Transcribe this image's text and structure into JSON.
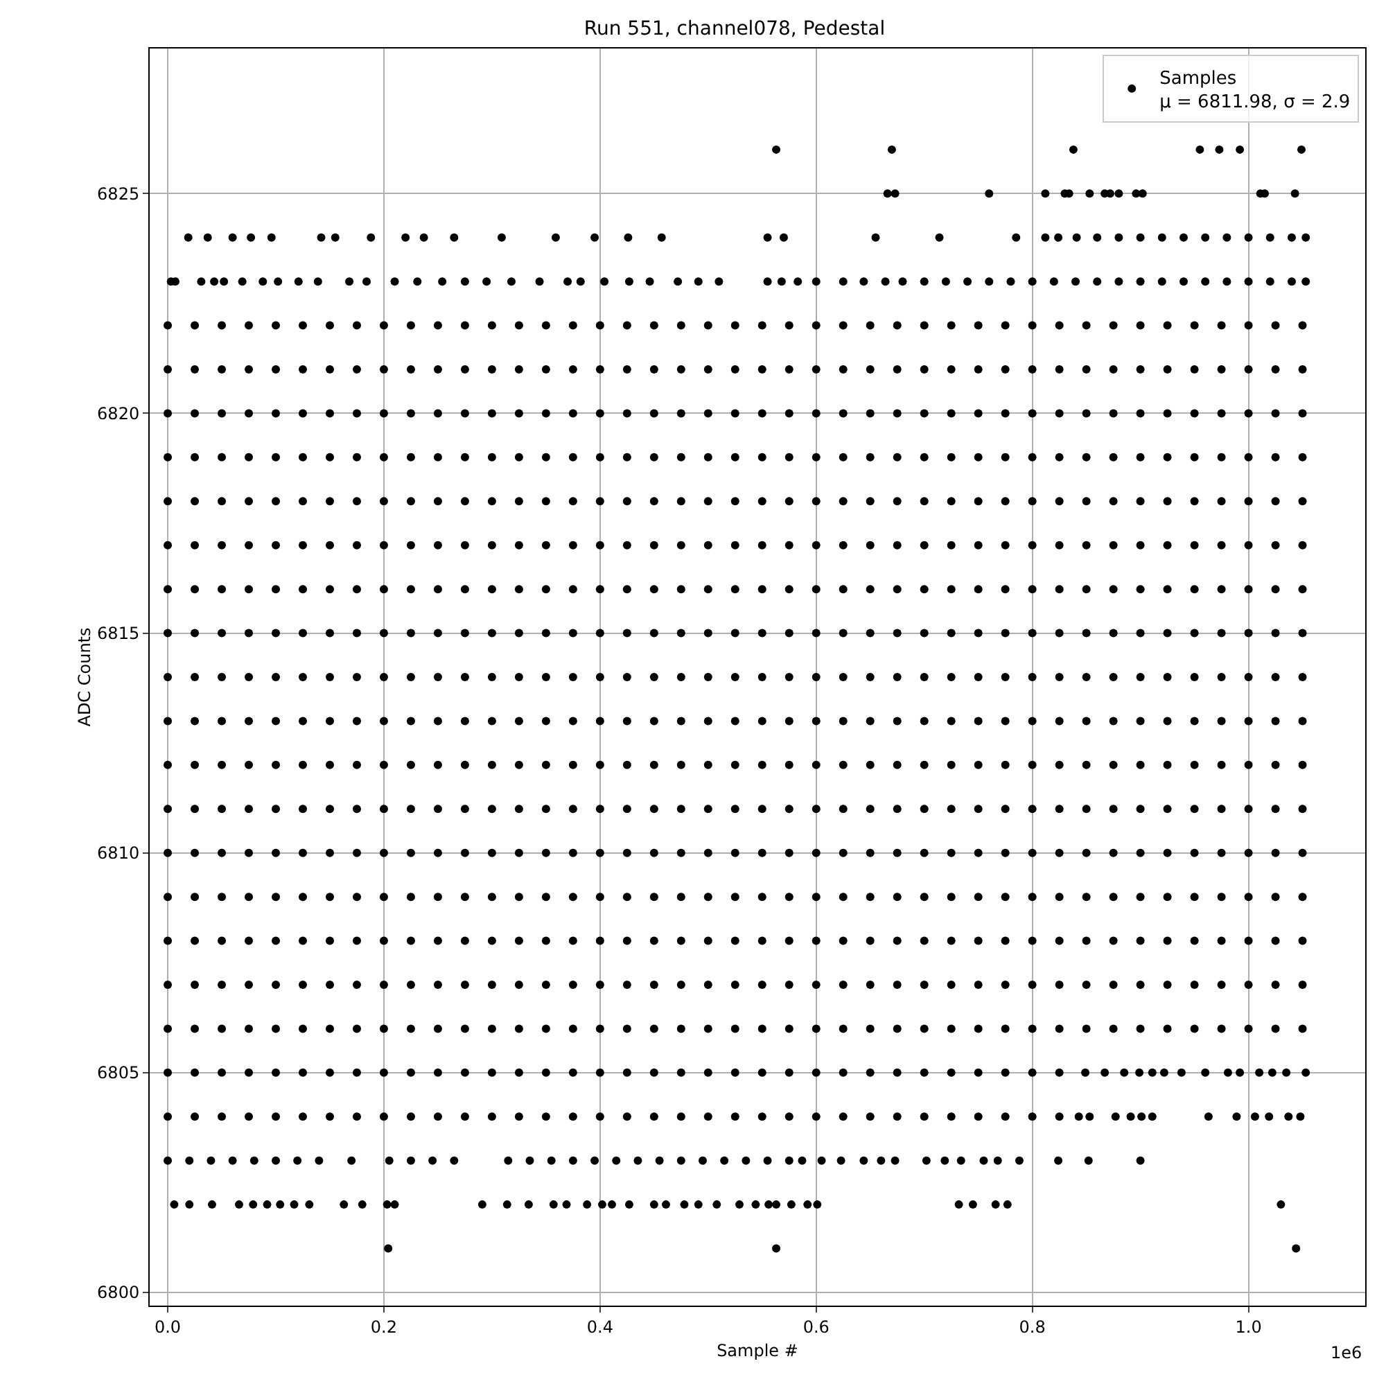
{
  "chart_data": {
    "type": "scatter",
    "title": "Run 551, channel078, Pedestal",
    "xlabel": "Sample #",
    "ylabel": "ADC Counts",
    "annotations": [
      "1e6"
    ],
    "xlim": [
      -0.0167,
      1.108
    ],
    "xticks": [
      {
        "value": 0,
        "label": "0.0"
      },
      0.2,
      0.4,
      0.6,
      0.8,
      {
        "value": 1,
        "label": "1.0"
      }
    ],
    "ylim": [
      6799.7,
      6828.3
    ],
    "yticks": [
      6800,
      6805,
      6810,
      6815,
      6820,
      6825
    ],
    "grid": true,
    "legend": "top right",
    "marker": "circle",
    "x": [
      0,
      0.025,
      0.05,
      0.075,
      0.1,
      0.125,
      0.15,
      0.175,
      0.2,
      0.225,
      0.25,
      0.275,
      0.3,
      0.325,
      0.35,
      0.375,
      0.4,
      0.425,
      0.45,
      0.475,
      0.5,
      0.525,
      0.55,
      0.575,
      0.6,
      0.625,
      0.65,
      0.675,
      0.7,
      0.725,
      0.75,
      0.775,
      0.8,
      0.825,
      0.85,
      0.875,
      0.9,
      0.925,
      0.95,
      0.975,
      1,
      1.025,
      1.05
    ],
    "series": [
      {
        "name": "Samples\nμ = 6811.98, σ = 2.9",
        "color": "#000000",
        "values": [
          6822,
          6822,
          6822,
          6822,
          6822,
          6822,
          6822,
          6822,
          6822,
          6822,
          6822,
          6822,
          6822,
          6822,
          6822,
          6822,
          6822,
          6822,
          6822,
          6822,
          6822,
          6822,
          6822,
          6822,
          6822,
          6822,
          6822,
          6822,
          6822,
          6822,
          6822,
          6822,
          6822,
          6822,
          6822,
          6822,
          6822,
          6822,
          6822,
          6822,
          6822,
          6822,
          6822
        ]
      },
      {
        "color": "#000000",
        "values": [
          6821,
          6821,
          6821,
          6821,
          6821,
          6821,
          6821,
          6821,
          6821,
          6821,
          6821,
          6821,
          6821,
          6821,
          6821,
          6821,
          6821,
          6821,
          6821,
          6821,
          6821,
          6821,
          6821,
          6821,
          6821,
          6821,
          6821,
          6821,
          6821,
          6821,
          6821,
          6821,
          6821,
          6821,
          6821,
          6821,
          6821,
          6821,
          6821,
          6821,
          6821,
          6821,
          6821
        ]
      },
      {
        "color": "#000000",
        "values": [
          6820,
          6820,
          6820,
          6820,
          6820,
          6820,
          6820,
          6820,
          6820,
          6820,
          6820,
          6820,
          6820,
          6820,
          6820,
          6820,
          6820,
          6820,
          6820,
          6820,
          6820,
          6820,
          6820,
          6820,
          6820,
          6820,
          6820,
          6820,
          6820,
          6820,
          6820,
          6820,
          6820,
          6820,
          6820,
          6820,
          6820,
          6820,
          6820,
          6820,
          6820,
          6820,
          6820
        ]
      },
      {
        "color": "#000000",
        "values": [
          6819,
          6819,
          6819,
          6819,
          6819,
          6819,
          6819,
          6819,
          6819,
          6819,
          6819,
          6819,
          6819,
          6819,
          6819,
          6819,
          6819,
          6819,
          6819,
          6819,
          6819,
          6819,
          6819,
          6819,
          6819,
          6819,
          6819,
          6819,
          6819,
          6819,
          6819,
          6819,
          6819,
          6819,
          6819,
          6819,
          6819,
          6819,
          6819,
          6819,
          6819,
          6819,
          6819
        ]
      },
      {
        "color": "#000000",
        "values": [
          6818,
          6818,
          6818,
          6818,
          6818,
          6818,
          6818,
          6818,
          6818,
          6818,
          6818,
          6818,
          6818,
          6818,
          6818,
          6818,
          6818,
          6818,
          6818,
          6818,
          6818,
          6818,
          6818,
          6818,
          6818,
          6818,
          6818,
          6818,
          6818,
          6818,
          6818,
          6818,
          6818,
          6818,
          6818,
          6818,
          6818,
          6818,
          6818,
          6818,
          6818,
          6818,
          6818
        ]
      },
      {
        "color": "#000000",
        "values": [
          6817,
          6817,
          6817,
          6817,
          6817,
          6817,
          6817,
          6817,
          6817,
          6817,
          6817,
          6817,
          6817,
          6817,
          6817,
          6817,
          6817,
          6817,
          6817,
          6817,
          6817,
          6817,
          6817,
          6817,
          6817,
          6817,
          6817,
          6817,
          6817,
          6817,
          6817,
          6817,
          6817,
          6817,
          6817,
          6817,
          6817,
          6817,
          6817,
          6817,
          6817,
          6817,
          6817
        ]
      },
      {
        "color": "#000000",
        "values": [
          6816,
          6816,
          6816,
          6816,
          6816,
          6816,
          6816,
          6816,
          6816,
          6816,
          6816,
          6816,
          6816,
          6816,
          6816,
          6816,
          6816,
          6816,
          6816,
          6816,
          6816,
          6816,
          6816,
          6816,
          6816,
          6816,
          6816,
          6816,
          6816,
          6816,
          6816,
          6816,
          6816,
          6816,
          6816,
          6816,
          6816,
          6816,
          6816,
          6816,
          6816,
          6816,
          6816
        ]
      },
      {
        "color": "#000000",
        "values": [
          6815,
          6815,
          6815,
          6815,
          6815,
          6815,
          6815,
          6815,
          6815,
          6815,
          6815,
          6815,
          6815,
          6815,
          6815,
          6815,
          6815,
          6815,
          6815,
          6815,
          6815,
          6815,
          6815,
          6815,
          6815,
          6815,
          6815,
          6815,
          6815,
          6815,
          6815,
          6815,
          6815,
          6815,
          6815,
          6815,
          6815,
          6815,
          6815,
          6815,
          6815,
          6815,
          6815
        ]
      },
      {
        "color": "#000000",
        "values": [
          6814,
          6814,
          6814,
          6814,
          6814,
          6814,
          6814,
          6814,
          6814,
          6814,
          6814,
          6814,
          6814,
          6814,
          6814,
          6814,
          6814,
          6814,
          6814,
          6814,
          6814,
          6814,
          6814,
          6814,
          6814,
          6814,
          6814,
          6814,
          6814,
          6814,
          6814,
          6814,
          6814,
          6814,
          6814,
          6814,
          6814,
          6814,
          6814,
          6814,
          6814,
          6814,
          6814
        ]
      },
      {
        "color": "#000000",
        "values": [
          6813,
          6813,
          6813,
          6813,
          6813,
          6813,
          6813,
          6813,
          6813,
          6813,
          6813,
          6813,
          6813,
          6813,
          6813,
          6813,
          6813,
          6813,
          6813,
          6813,
          6813,
          6813,
          6813,
          6813,
          6813,
          6813,
          6813,
          6813,
          6813,
          6813,
          6813,
          6813,
          6813,
          6813,
          6813,
          6813,
          6813,
          6813,
          6813,
          6813,
          6813,
          6813,
          6813
        ]
      },
      {
        "color": "#000000",
        "values": [
          6812,
          6812,
          6812,
          6812,
          6812,
          6812,
          6812,
          6812,
          6812,
          6812,
          6812,
          6812,
          6812,
          6812,
          6812,
          6812,
          6812,
          6812,
          6812,
          6812,
          6812,
          6812,
          6812,
          6812,
          6812,
          6812,
          6812,
          6812,
          6812,
          6812,
          6812,
          6812,
          6812,
          6812,
          6812,
          6812,
          6812,
          6812,
          6812,
          6812,
          6812,
          6812,
          6812
        ]
      },
      {
        "color": "#000000",
        "values": [
          6811,
          6811,
          6811,
          6811,
          6811,
          6811,
          6811,
          6811,
          6811,
          6811,
          6811,
          6811,
          6811,
          6811,
          6811,
          6811,
          6811,
          6811,
          6811,
          6811,
          6811,
          6811,
          6811,
          6811,
          6811,
          6811,
          6811,
          6811,
          6811,
          6811,
          6811,
          6811,
          6811,
          6811,
          6811,
          6811,
          6811,
          6811,
          6811,
          6811,
          6811,
          6811,
          6811
        ]
      },
      {
        "color": "#000000",
        "values": [
          6810,
          6810,
          6810,
          6810,
          6810,
          6810,
          6810,
          6810,
          6810,
          6810,
          6810,
          6810,
          6810,
          6810,
          6810,
          6810,
          6810,
          6810,
          6810,
          6810,
          6810,
          6810,
          6810,
          6810,
          6810,
          6810,
          6810,
          6810,
          6810,
          6810,
          6810,
          6810,
          6810,
          6810,
          6810,
          6810,
          6810,
          6810,
          6810,
          6810,
          6810,
          6810,
          6810
        ]
      },
      {
        "color": "#000000",
        "values": [
          6809,
          6809,
          6809,
          6809,
          6809,
          6809,
          6809,
          6809,
          6809,
          6809,
          6809,
          6809,
          6809,
          6809,
          6809,
          6809,
          6809,
          6809,
          6809,
          6809,
          6809,
          6809,
          6809,
          6809,
          6809,
          6809,
          6809,
          6809,
          6809,
          6809,
          6809,
          6809,
          6809,
          6809,
          6809,
          6809,
          6809,
          6809,
          6809,
          6809,
          6809,
          6809,
          6809
        ]
      },
      {
        "color": "#000000",
        "values": [
          6808,
          6808,
          6808,
          6808,
          6808,
          6808,
          6808,
          6808,
          6808,
          6808,
          6808,
          6808,
          6808,
          6808,
          6808,
          6808,
          6808,
          6808,
          6808,
          6808,
          6808,
          6808,
          6808,
          6808,
          6808,
          6808,
          6808,
          6808,
          6808,
          6808,
          6808,
          6808,
          6808,
          6808,
          6808,
          6808,
          6808,
          6808,
          6808,
          6808,
          6808,
          6808,
          6808
        ]
      },
      {
        "color": "#000000",
        "values": [
          6807,
          6807,
          6807,
          6807,
          6807,
          6807,
          6807,
          6807,
          6807,
          6807,
          6807,
          6807,
          6807,
          6807,
          6807,
          6807,
          6807,
          6807,
          6807,
          6807,
          6807,
          6807,
          6807,
          6807,
          6807,
          6807,
          6807,
          6807,
          6807,
          6807,
          6807,
          6807,
          6807,
          6807,
          6807,
          6807,
          6807,
          6807,
          6807,
          6807,
          6807,
          6807,
          6807
        ]
      },
      {
        "color": "#000000",
        "values": [
          6806,
          6806,
          6806,
          6806,
          6806,
          6806,
          6806,
          6806,
          6806,
          6806,
          6806,
          6806,
          6806,
          6806,
          6806,
          6806,
          6806,
          6806,
          6806,
          6806,
          6806,
          6806,
          6806,
          6806,
          6806,
          6806,
          6806,
          6806,
          6806,
          6806,
          6806,
          6806,
          6806,
          6806,
          6806,
          6806,
          6806,
          6806,
          6806,
          6806,
          6806,
          6806,
          6806
        ]
      },
      {
        "color": "#000000",
        "x": [
          0,
          0.025,
          0.05,
          0.075,
          0.1,
          0.125,
          0.15,
          0.175,
          0.2,
          0.225,
          0.25,
          0.275,
          0.3,
          0.325,
          0.35,
          0.375,
          0.4,
          0.425,
          0.45,
          0.475,
          0.5,
          0.525,
          0.55,
          0.575,
          0.6,
          0.625,
          0.65,
          0.675,
          0.7,
          0.725,
          0.75,
          0.775,
          0.8,
          0.825,
          0.849,
          0.867,
          0.885,
          0.899,
          0.911,
          0.922,
          0.938,
          0.96,
          0.981,
          0.992,
          1.01,
          1.022,
          1.035,
          1.053
        ],
        "values": [
          6805,
          6805,
          6805,
          6805,
          6805,
          6805,
          6805,
          6805,
          6805,
          6805,
          6805,
          6805,
          6805,
          6805,
          6805,
          6805,
          6805,
          6805,
          6805,
          6805,
          6805,
          6805,
          6805,
          6805,
          6805,
          6805,
          6805,
          6805,
          6805,
          6805,
          6805,
          6805,
          6805,
          6805,
          6805,
          6805,
          6805,
          6805,
          6805,
          6805,
          6805,
          6805,
          6805,
          6805,
          6805,
          6805,
          6805,
          6805
        ]
      },
      {
        "color": "#000000",
        "x": [
          0,
          0.025,
          0.05,
          0.075,
          0.1,
          0.125,
          0.15,
          0.175,
          0.2,
          0.225,
          0.25,
          0.275,
          0.3,
          0.325,
          0.35,
          0.375,
          0.4,
          0.425,
          0.45,
          0.475,
          0.5,
          0.525,
          0.55,
          0.575,
          0.6,
          0.625,
          0.65,
          0.675,
          0.7,
          0.725,
          0.75,
          0.775,
          0.8,
          0.825,
          0.843,
          0.853,
          0.877,
          0.891,
          0.901,
          0.911,
          0.963,
          0.989,
          1.006,
          1.019,
          1.037,
          1.048
        ],
        "values": [
          6804,
          6804,
          6804,
          6804,
          6804,
          6804,
          6804,
          6804,
          6804,
          6804,
          6804,
          6804,
          6804,
          6804,
          6804,
          6804,
          6804,
          6804,
          6804,
          6804,
          6804,
          6804,
          6804,
          6804,
          6804,
          6804,
          6804,
          6804,
          6804,
          6804,
          6804,
          6804,
          6804,
          6804,
          6804,
          6804,
          6804,
          6804,
          6804,
          6804,
          6804,
          6804,
          6804,
          6804,
          6804,
          6804
        ]
      },
      {
        "color": "#000000",
        "x": [
          0,
          0.02,
          0.04,
          0.06,
          0.08,
          0.1,
          0.12,
          0.14,
          0.17,
          0.205,
          0.225,
          0.245,
          0.265,
          0.315,
          0.335,
          0.355,
          0.375,
          0.395,
          0.415,
          0.435,
          0.455,
          0.475,
          0.495,
          0.515,
          0.535,
          0.555,
          0.575,
          0.587,
          0.605,
          0.623,
          0.644,
          0.66,
          0.673,
          0.702,
          0.719,
          0.734,
          0.755,
          0.768,
          0.788,
          0.824,
          0.852,
          0.9
        ],
        "values": [
          6803,
          6803,
          6803,
          6803,
          6803,
          6803,
          6803,
          6803,
          6803,
          6803,
          6803,
          6803,
          6803,
          6803,
          6803,
          6803,
          6803,
          6803,
          6803,
          6803,
          6803,
          6803,
          6803,
          6803,
          6803,
          6803,
          6803,
          6803,
          6803,
          6803,
          6803,
          6803,
          6803,
          6803,
          6803,
          6803,
          6803,
          6803,
          6803,
          6803,
          6803,
          6803
        ]
      },
      {
        "color": "#000000",
        "x": [
          0.006,
          0.02,
          0.041,
          0.066,
          0.079,
          0.092,
          0.104,
          0.117,
          0.131,
          0.163,
          0.18,
          0.203,
          0.21,
          0.291,
          0.314,
          0.334,
          0.357,
          0.369,
          0.388,
          0.402,
          0.411,
          0.427,
          0.45,
          0.461,
          0.478,
          0.491,
          0.508,
          0.529,
          0.544,
          0.556,
          0.563,
          0.577,
          0.592,
          0.601,
          0.732,
          0.745,
          0.766,
          0.777,
          1.03
        ],
        "values": [
          6802,
          6802,
          6802,
          6802,
          6802,
          6802,
          6802,
          6802,
          6802,
          6802,
          6802,
          6802,
          6802,
          6802,
          6802,
          6802,
          6802,
          6802,
          6802,
          6802,
          6802,
          6802,
          6802,
          6802,
          6802,
          6802,
          6802,
          6802,
          6802,
          6802,
          6802,
          6802,
          6802,
          6802,
          6802,
          6802,
          6802,
          6802,
          6802
        ]
      },
      {
        "color": "#000000",
        "x": [
          0.204,
          0.563,
          1.044
        ],
        "values": [
          6801,
          6801,
          6801
        ]
      },
      {
        "color": "#000000",
        "x": [
          0.003,
          0.007,
          0.031,
          0.043,
          0.052,
          0.069,
          0.088,
          0.102,
          0.121,
          0.139,
          0.168,
          0.184,
          0.21,
          0.231,
          0.254,
          0.275,
          0.295,
          0.318,
          0.344,
          0.37,
          0.382,
          0.404,
          0.427,
          0.446,
          0.472,
          0.491,
          0.51,
          0.555,
          0.568,
          0.583,
          0.6,
          0.625,
          0.644,
          0.664,
          0.68,
          0.7,
          0.72,
          0.74,
          0.76,
          0.78,
          0.8,
          0.82,
          0.84,
          0.86,
          0.88,
          0.9,
          0.92,
          0.94,
          0.96,
          0.98,
          1,
          1.02,
          1.04,
          1.053
        ],
        "values": [
          6823,
          6823,
          6823,
          6823,
          6823,
          6823,
          6823,
          6823,
          6823,
          6823,
          6823,
          6823,
          6823,
          6823,
          6823,
          6823,
          6823,
          6823,
          6823,
          6823,
          6823,
          6823,
          6823,
          6823,
          6823,
          6823,
          6823,
          6823,
          6823,
          6823,
          6823,
          6823,
          6823,
          6823,
          6823,
          6823,
          6823,
          6823,
          6823,
          6823,
          6823,
          6823,
          6823,
          6823,
          6823,
          6823,
          6823,
          6823,
          6823,
          6823,
          6823,
          6823,
          6823,
          6823
        ]
      },
      {
        "color": "#000000",
        "x": [
          0.019,
          0.037,
          0.06,
          0.077,
          0.096,
          0.142,
          0.155,
          0.188,
          0.22,
          0.237,
          0.265,
          0.309,
          0.359,
          0.395,
          0.426,
          0.457,
          0.555,
          0.57,
          0.655,
          0.714,
          0.785,
          0.812,
          0.824,
          0.841,
          0.86,
          0.88,
          0.9,
          0.92,
          0.94,
          0.96,
          0.98,
          1,
          1.02,
          1.04,
          1.053
        ],
        "values": [
          6824,
          6824,
          6824,
          6824,
          6824,
          6824,
          6824,
          6824,
          6824,
          6824,
          6824,
          6824,
          6824,
          6824,
          6824,
          6824,
          6824,
          6824,
          6824,
          6824,
          6824,
          6824,
          6824,
          6824,
          6824,
          6824,
          6824,
          6824,
          6824,
          6824,
          6824,
          6824,
          6824,
          6824,
          6824
        ]
      },
      {
        "color": "#000000",
        "x": [
          0.666,
          0.673,
          0.76,
          0.812,
          0.83,
          0.834,
          0.853,
          0.867,
          0.872,
          0.88,
          0.896,
          0.902,
          1.011,
          1.015,
          1.043
        ],
        "values": [
          6825,
          6825,
          6825,
          6825,
          6825,
          6825,
          6825,
          6825,
          6825,
          6825,
          6825,
          6825,
          6825,
          6825,
          6825
        ]
      },
      {
        "color": "#000000",
        "x": [
          0.563,
          0.67,
          0.838,
          0.955,
          0.973,
          0.992,
          1.049
        ],
        "values": [
          6826,
          6826,
          6826,
          6826,
          6826,
          6826,
          6826
        ]
      }
    ]
  }
}
